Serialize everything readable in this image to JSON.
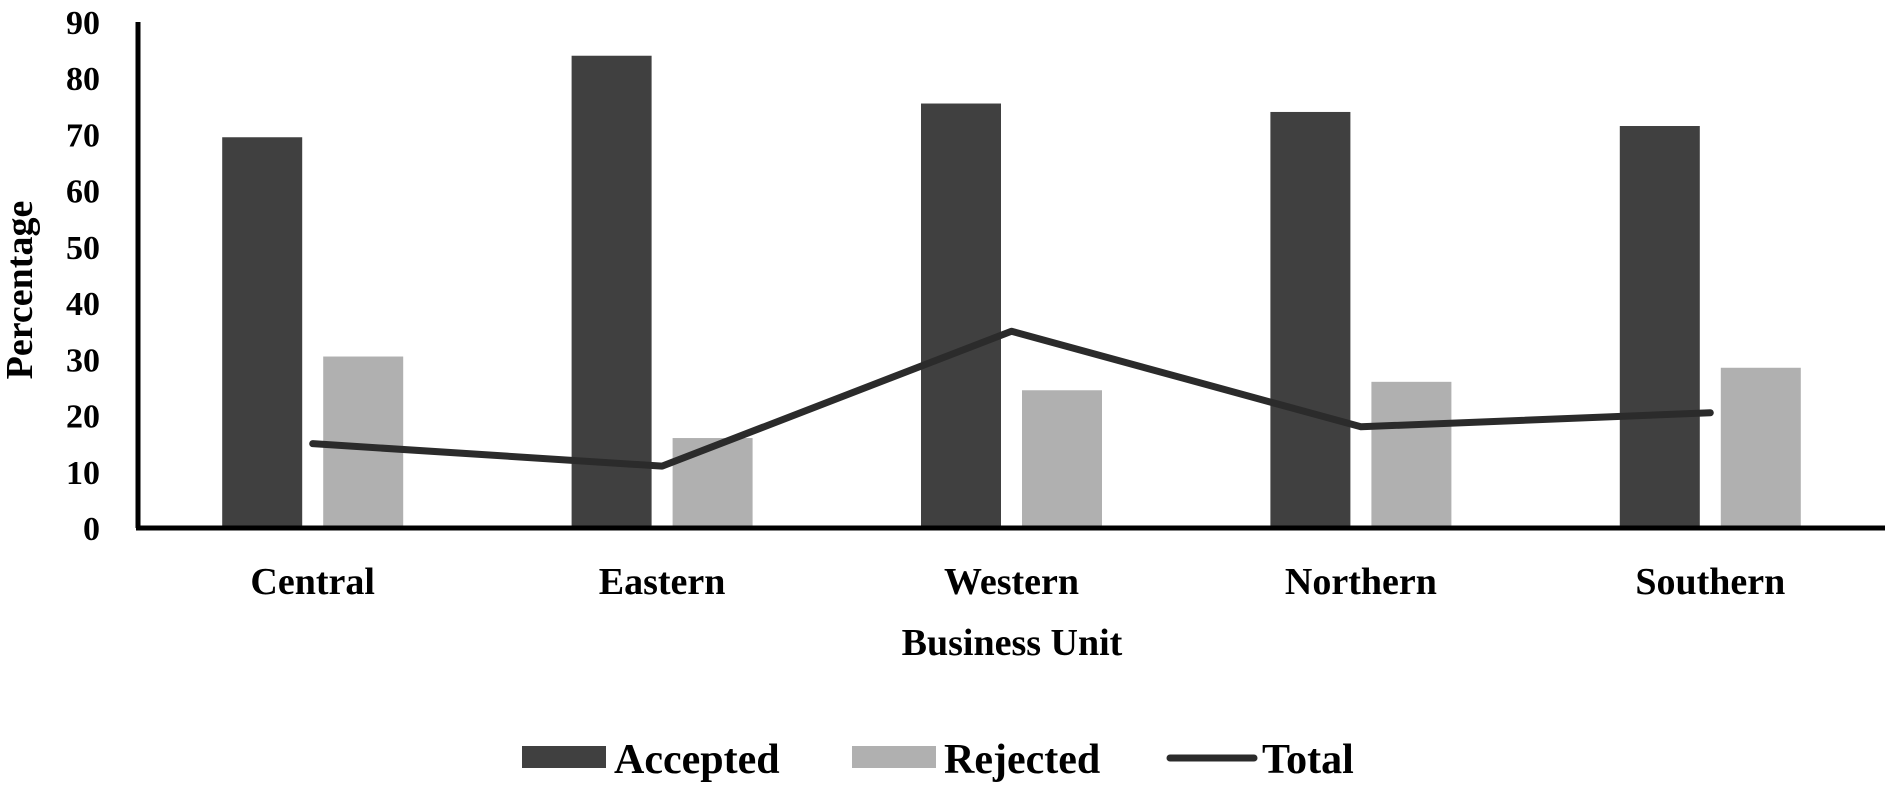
{
  "chart_data": {
    "type": "bar",
    "categories": [
      "Central",
      "Eastern",
      "Western",
      "Northern",
      "Southern"
    ],
    "series": [
      {
        "name": "Accepted",
        "kind": "bar",
        "color": "#404040",
        "values": [
          69.5,
          84,
          75.5,
          74,
          71.5
        ]
      },
      {
        "name": "Rejected",
        "kind": "bar",
        "color": "#b0b0b0",
        "values": [
          30.5,
          16,
          24.5,
          26,
          28.5
        ]
      },
      {
        "name": "Total",
        "kind": "line",
        "color": "#2b2b2b",
        "values": [
          15,
          11,
          35,
          18,
          20.5
        ]
      }
    ],
    "xlabel": "Business Unit",
    "ylabel": "Percentage",
    "ylim": [
      0,
      90
    ],
    "yticks": [
      "0",
      "10",
      "20",
      "30",
      "40",
      "50",
      "60",
      "70",
      "80",
      "90"
    ],
    "grid": false,
    "legend_position": "bottom"
  }
}
